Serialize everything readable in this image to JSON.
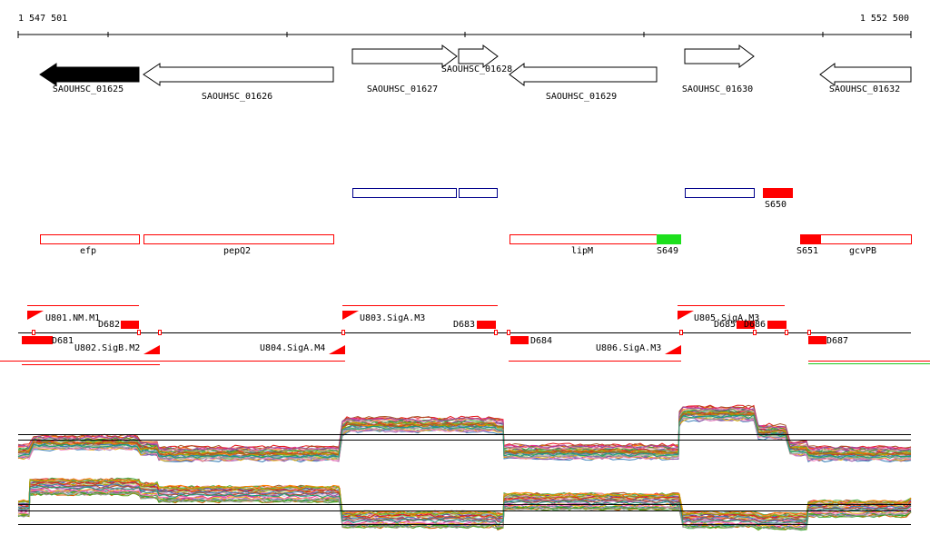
{
  "ruler": {
    "start": "1 547 501",
    "end": "1 552 500"
  },
  "genes": [
    "SAOUHSC_01625",
    "SAOUHSC_01626",
    "SAOUHSC_01627",
    "SAOUHSC_01628",
    "SAOUHSC_01629",
    "SAOUHSC_01630",
    "SAOUHSC_01632"
  ],
  "features": [
    "S650",
    "efp",
    "pepQ2",
    "lipM",
    "S649",
    "S651",
    "gcvPB"
  ],
  "transcripts": [
    "U801.NM.M1",
    "D682",
    "D681",
    "U802.SigB.M2",
    "U804.SigA.M4",
    "U803.SigA.M3",
    "D683",
    "D684",
    "U806.SigA.M3",
    "U805.SigA.M3",
    "D685",
    "D686",
    "D687"
  ]
}
